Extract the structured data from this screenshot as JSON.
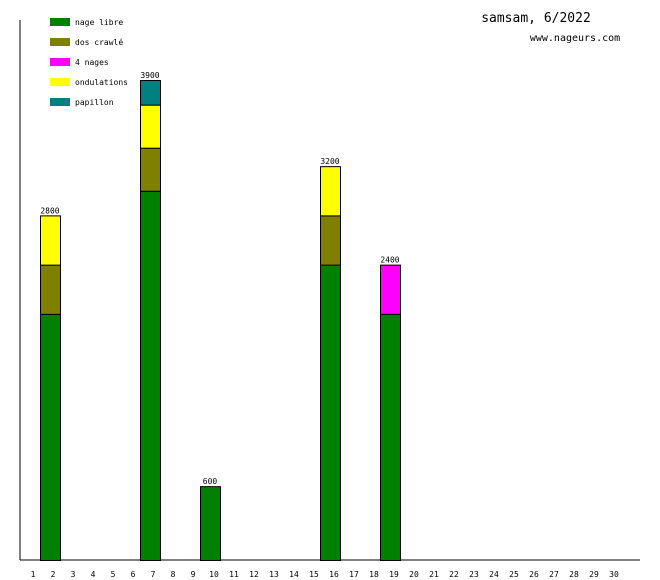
{
  "title": "samsam, 6/2022",
  "website": "www.nageurs.com",
  "chart_data": {
    "type": "bar",
    "stacked": true,
    "title": "samsam, 6/2022",
    "xlabel": "",
    "ylabel": "",
    "categories": [
      "1",
      "2",
      "3",
      "4",
      "5",
      "6",
      "7",
      "8",
      "9",
      "10",
      "11",
      "12",
      "13",
      "14",
      "15",
      "16",
      "17",
      "18",
      "19",
      "20",
      "21",
      "22",
      "23",
      "24",
      "25",
      "26",
      "27",
      "28",
      "29",
      "30"
    ],
    "ylim": [
      0,
      3900
    ],
    "grid": false,
    "legend_position": "top-left",
    "series": [
      {
        "name": "nage libre",
        "color": "#008000",
        "values": [
          0,
          2000,
          0,
          0,
          0,
          0,
          3000,
          0,
          0,
          600,
          0,
          0,
          0,
          0,
          0,
          2400,
          0,
          0,
          2000,
          0,
          0,
          0,
          0,
          0,
          0,
          0,
          0,
          0,
          0,
          0
        ]
      },
      {
        "name": "dos crawlé",
        "color": "#808000",
        "values": [
          0,
          400,
          0,
          0,
          0,
          0,
          350,
          0,
          0,
          0,
          0,
          0,
          0,
          0,
          0,
          400,
          0,
          0,
          0,
          0,
          0,
          0,
          0,
          0,
          0,
          0,
          0,
          0,
          0,
          0
        ]
      },
      {
        "name": "4 nages",
        "color": "#ff00ff",
        "values": [
          0,
          0,
          0,
          0,
          0,
          0,
          0,
          0,
          0,
          0,
          0,
          0,
          0,
          0,
          0,
          0,
          0,
          0,
          400,
          0,
          0,
          0,
          0,
          0,
          0,
          0,
          0,
          0,
          0,
          0
        ]
      },
      {
        "name": "ondulations",
        "color": "#ffff00",
        "values": [
          0,
          400,
          0,
          0,
          0,
          0,
          350,
          0,
          0,
          0,
          0,
          0,
          0,
          0,
          0,
          400,
          0,
          0,
          0,
          0,
          0,
          0,
          0,
          0,
          0,
          0,
          0,
          0,
          0,
          0
        ]
      },
      {
        "name": "papillon",
        "color": "#008080",
        "values": [
          0,
          0,
          0,
          0,
          0,
          0,
          200,
          0,
          0,
          0,
          0,
          0,
          0,
          0,
          0,
          0,
          0,
          0,
          0,
          0,
          0,
          0,
          0,
          0,
          0,
          0,
          0,
          0,
          0,
          0
        ]
      }
    ],
    "totals": [
      {
        "category": "2",
        "label": "2800"
      },
      {
        "category": "7",
        "label": "3900"
      },
      {
        "category": "10",
        "label": "600"
      },
      {
        "category": "16",
        "label": "3200"
      },
      {
        "category": "19",
        "label": "2400"
      }
    ]
  }
}
